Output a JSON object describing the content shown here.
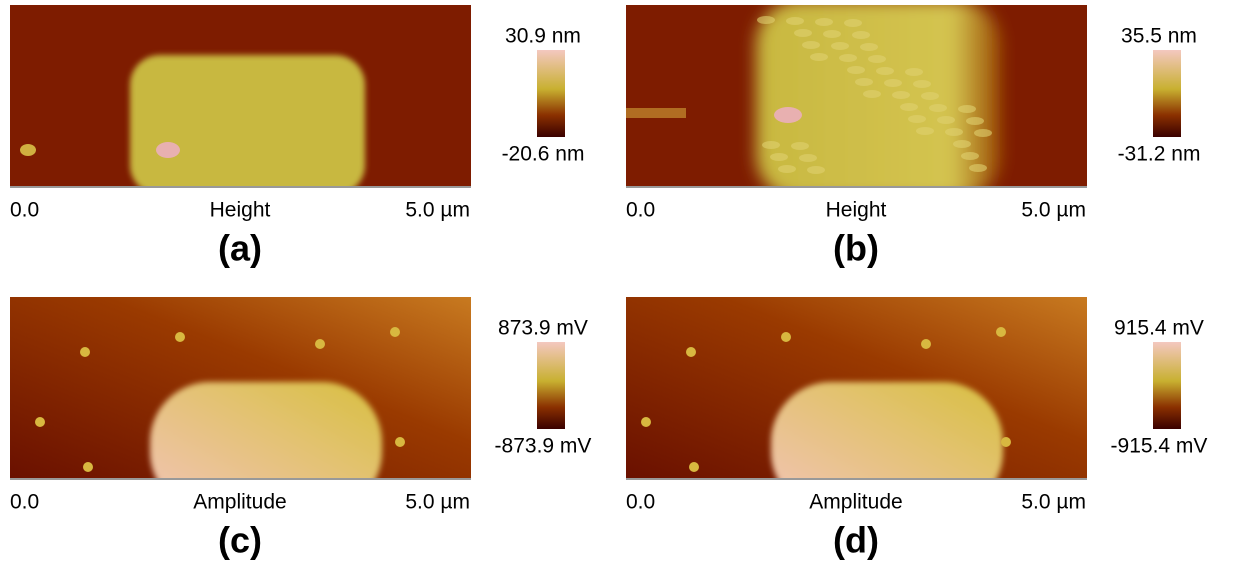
{
  "panels": [
    {
      "label": "(a)",
      "channel": "Height",
      "x_start": "0.0",
      "x_end": "5.0 µm",
      "scale_max": "30.9 nm",
      "scale_min": "-20.6 nm"
    },
    {
      "label": "(b)",
      "channel": "Height",
      "x_start": "0.0",
      "x_end": "5.0 µm",
      "scale_max": "35.5 nm",
      "scale_min": "-31.2 nm"
    },
    {
      "label": "(c)",
      "channel": "Amplitude",
      "x_start": "0.0",
      "x_end": "5.0 µm",
      "scale_max": "873.9 mV",
      "scale_min": "-873.9 mV"
    },
    {
      "label": "(d)",
      "channel": "Amplitude",
      "x_start": "0.0",
      "x_end": "5.0 µm",
      "scale_max": "915.4 mV",
      "scale_min": "-915.4 mV"
    }
  ]
}
